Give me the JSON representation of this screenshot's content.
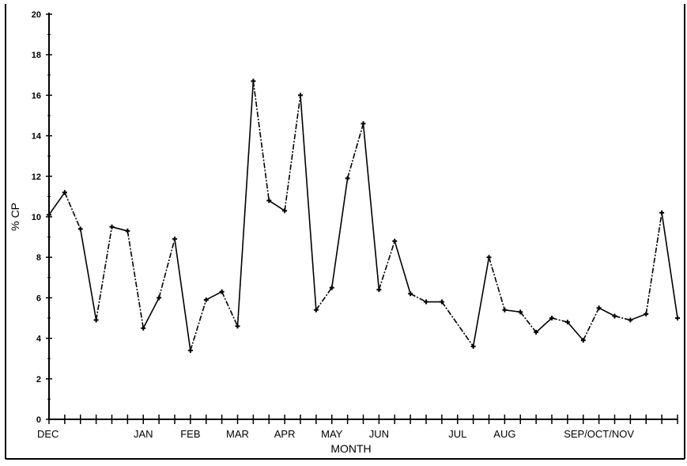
{
  "chart_data": {
    "type": "line",
    "title": "",
    "xlabel": "MONTH",
    "ylabel": "% CP",
    "ylim": [
      0,
      20
    ],
    "yticks": [
      0,
      2,
      4,
      6,
      8,
      10,
      12,
      14,
      16,
      18,
      20
    ],
    "grid": false,
    "legend": "none",
    "colors": {
      "line": "#000000",
      "axis": "#000000",
      "background": "#ffffff"
    },
    "month_labels": [
      {
        "label": "DEC",
        "x": 0
      },
      {
        "label": "JAN",
        "x": 6
      },
      {
        "label": "FEB",
        "x": 9
      },
      {
        "label": "MAR",
        "x": 12
      },
      {
        "label": "APR",
        "x": 15
      },
      {
        "label": "MAY",
        "x": 18
      },
      {
        "label": "JUN",
        "x": 21
      },
      {
        "label": "JUL",
        "x": 26
      },
      {
        "label": "AUG",
        "x": 29
      },
      {
        "label": "SEP/OCT/NOV",
        "x": 35
      }
    ],
    "x_tick_count": 41,
    "series": [
      {
        "values": [
          {
            "x": 0,
            "y": 10.1
          },
          {
            "x": 1,
            "y": 11.2
          },
          {
            "x": 2,
            "y": 9.4
          },
          {
            "x": 3,
            "y": 4.9
          },
          {
            "x": 4,
            "y": 9.5
          },
          {
            "x": 5,
            "y": 9.3
          },
          {
            "x": 6,
            "y": 4.5
          },
          {
            "x": 7,
            "y": 6.0
          },
          {
            "x": 8,
            "y": 8.9
          },
          {
            "x": 9,
            "y": 3.4
          },
          {
            "x": 10,
            "y": 5.9
          },
          {
            "x": 11,
            "y": 6.3
          },
          {
            "x": 12,
            "y": 4.6
          },
          {
            "x": 13,
            "y": 16.7
          },
          {
            "x": 14,
            "y": 10.8
          },
          {
            "x": 15,
            "y": 10.3
          },
          {
            "x": 16,
            "y": 16.0
          },
          {
            "x": 17,
            "y": 5.4
          },
          {
            "x": 18,
            "y": 6.5
          },
          {
            "x": 19,
            "y": 11.9
          },
          {
            "x": 20,
            "y": 14.6
          },
          {
            "x": 21,
            "y": 6.4
          },
          {
            "x": 22,
            "y": 8.8
          },
          {
            "x": 23,
            "y": 6.2
          },
          {
            "x": 24,
            "y": 5.8
          },
          {
            "x": 25,
            "y": 5.8
          },
          {
            "x": 27,
            "y": 3.6
          },
          {
            "x": 28,
            "y": 8.0
          },
          {
            "x": 29,
            "y": 5.4
          },
          {
            "x": 30,
            "y": 5.3
          },
          {
            "x": 31,
            "y": 4.3
          },
          {
            "x": 32,
            "y": 5.0
          },
          {
            "x": 33,
            "y": 4.8
          },
          {
            "x": 34,
            "y": 3.9
          },
          {
            "x": 35,
            "y": 5.5
          },
          {
            "x": 36,
            "y": 5.1
          },
          {
            "x": 37,
            "y": 4.9
          },
          {
            "x": 38,
            "y": 5.2
          },
          {
            "x": 39,
            "y": 10.2
          },
          {
            "x": 40,
            "y": 5.0
          }
        ]
      }
    ]
  }
}
